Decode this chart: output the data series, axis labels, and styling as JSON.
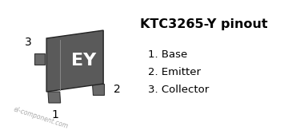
{
  "title": "KTC3265-Y pinout",
  "pins": [
    "1. Base",
    "2. Emitter",
    "3. Collector"
  ],
  "marking": "EY",
  "watermark": "el-component.com",
  "bg_color": "#ffffff",
  "body_color": "#5a5a5a",
  "body_edge_color": "#222222",
  "pin_color": "#6a6a6a",
  "pin_edge_color": "#333333",
  "text_color": "#000000",
  "marking_color": "#ffffff",
  "watermark_color": "#aaaaaa",
  "title_fontsize": 11.5,
  "pin_fontsize": 9.5,
  "label_fontsize": 10,
  "marking_fontsize": 16,
  "divider_color": "#888888"
}
